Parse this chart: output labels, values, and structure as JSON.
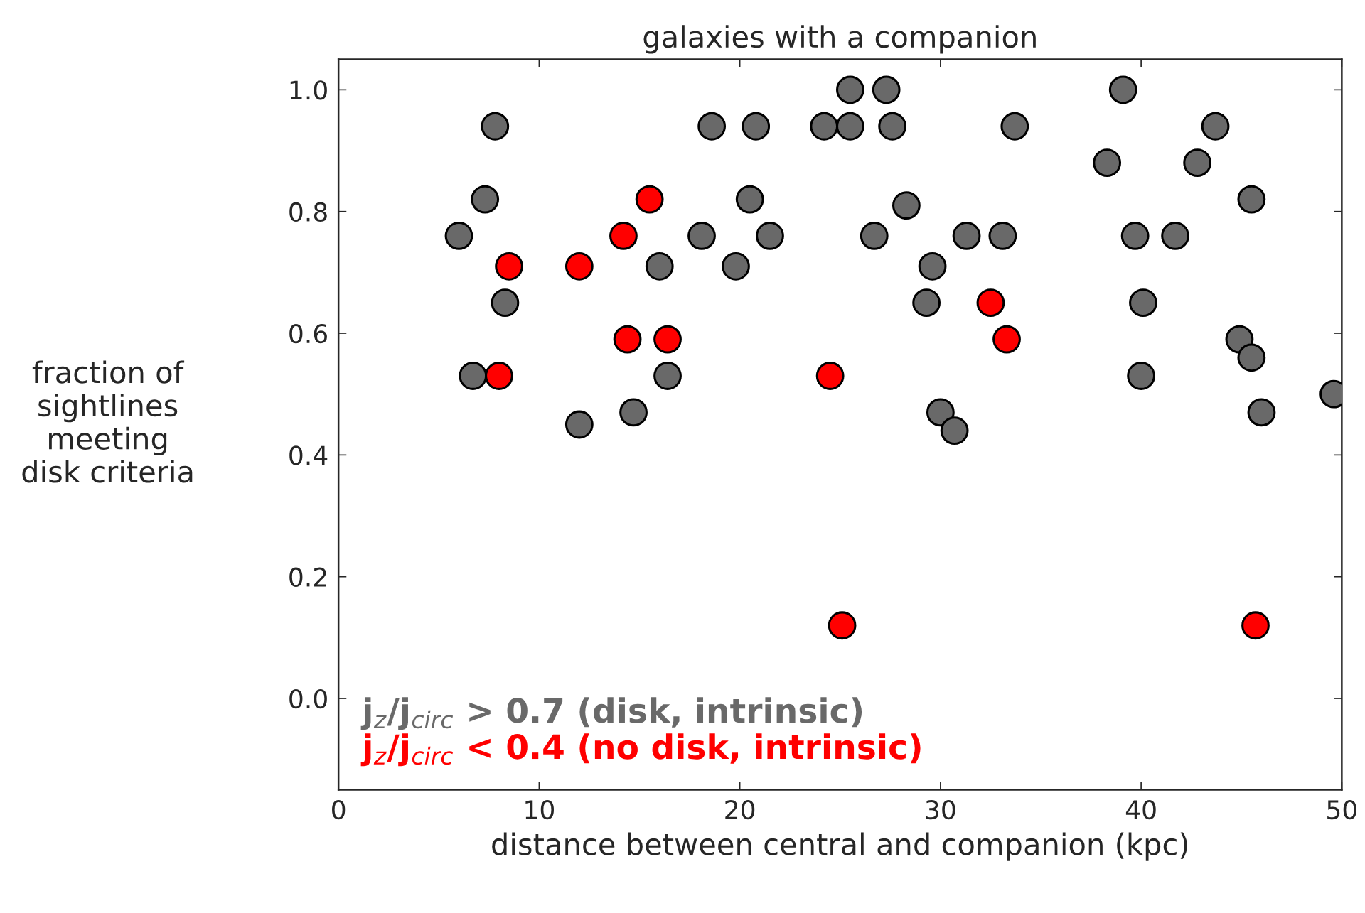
{
  "chart_data": {
    "type": "scatter",
    "title": "galaxies with a companion",
    "xlabel": "distance between central and companion (kpc)",
    "ylabel": "fraction of\nsightlines\nmeeting\ndisk criteria",
    "xlim": [
      0,
      50
    ],
    "ylim": [
      -0.15,
      1.05
    ],
    "xticks": [
      0,
      10,
      20,
      30,
      40,
      50
    ],
    "yticks": [
      {
        "value": 0,
        "label": "0.0"
      },
      0.2,
      0.4,
      0.6,
      0.8,
      {
        "value": 1,
        "label": "1.0"
      }
    ],
    "grid": false,
    "legend": "bottom left",
    "marker": "circle",
    "series": [
      {
        "name": "j$_{z}$/j$_{circ}$ > 0.7 (disk, intrinsic)",
        "color": "#696969",
        "x": [
          6.0,
          7.3,
          7.8,
          8.3,
          6.7,
          12.0,
          14.7,
          16.0,
          16.4,
          18.1,
          18.6,
          19.8,
          20.5,
          20.8,
          21.5,
          24.2,
          25.5,
          25.5,
          27.3,
          27.6,
          26.7,
          28.3,
          29.6,
          29.3,
          30.0,
          30.7,
          31.3,
          33.1,
          33.7,
          38.3,
          39.1,
          39.7,
          40.1,
          40.0,
          41.7,
          42.8,
          43.7,
          45.5,
          44.9,
          45.5,
          46.0,
          49.6
        ],
        "values": [
          0.76,
          0.82,
          0.94,
          0.65,
          0.53,
          0.45,
          0.47,
          0.71,
          0.53,
          0.76,
          0.94,
          0.71,
          0.82,
          0.94,
          0.76,
          0.94,
          1.0,
          0.94,
          1.0,
          0.94,
          0.76,
          0.81,
          0.71,
          0.65,
          0.47,
          0.44,
          0.76,
          0.76,
          0.94,
          0.88,
          1.0,
          0.76,
          0.65,
          0.53,
          0.76,
          0.88,
          0.94,
          0.82,
          0.59,
          0.56,
          0.47,
          0.5
        ]
      },
      {
        "name": "j$_{z}$/j$_{circ}$ < 0.4 (no disk, intrinsic)",
        "color": "#ff0000",
        "x": [
          8.5,
          8.0,
          12.0,
          14.2,
          15.5,
          14.4,
          16.4,
          24.5,
          25.1,
          32.5,
          33.3,
          45.7
        ],
        "values": [
          0.71,
          0.53,
          0.71,
          0.76,
          0.82,
          0.59,
          0.59,
          0.53,
          0.12,
          0.65,
          0.59,
          0.12
        ]
      }
    ]
  }
}
